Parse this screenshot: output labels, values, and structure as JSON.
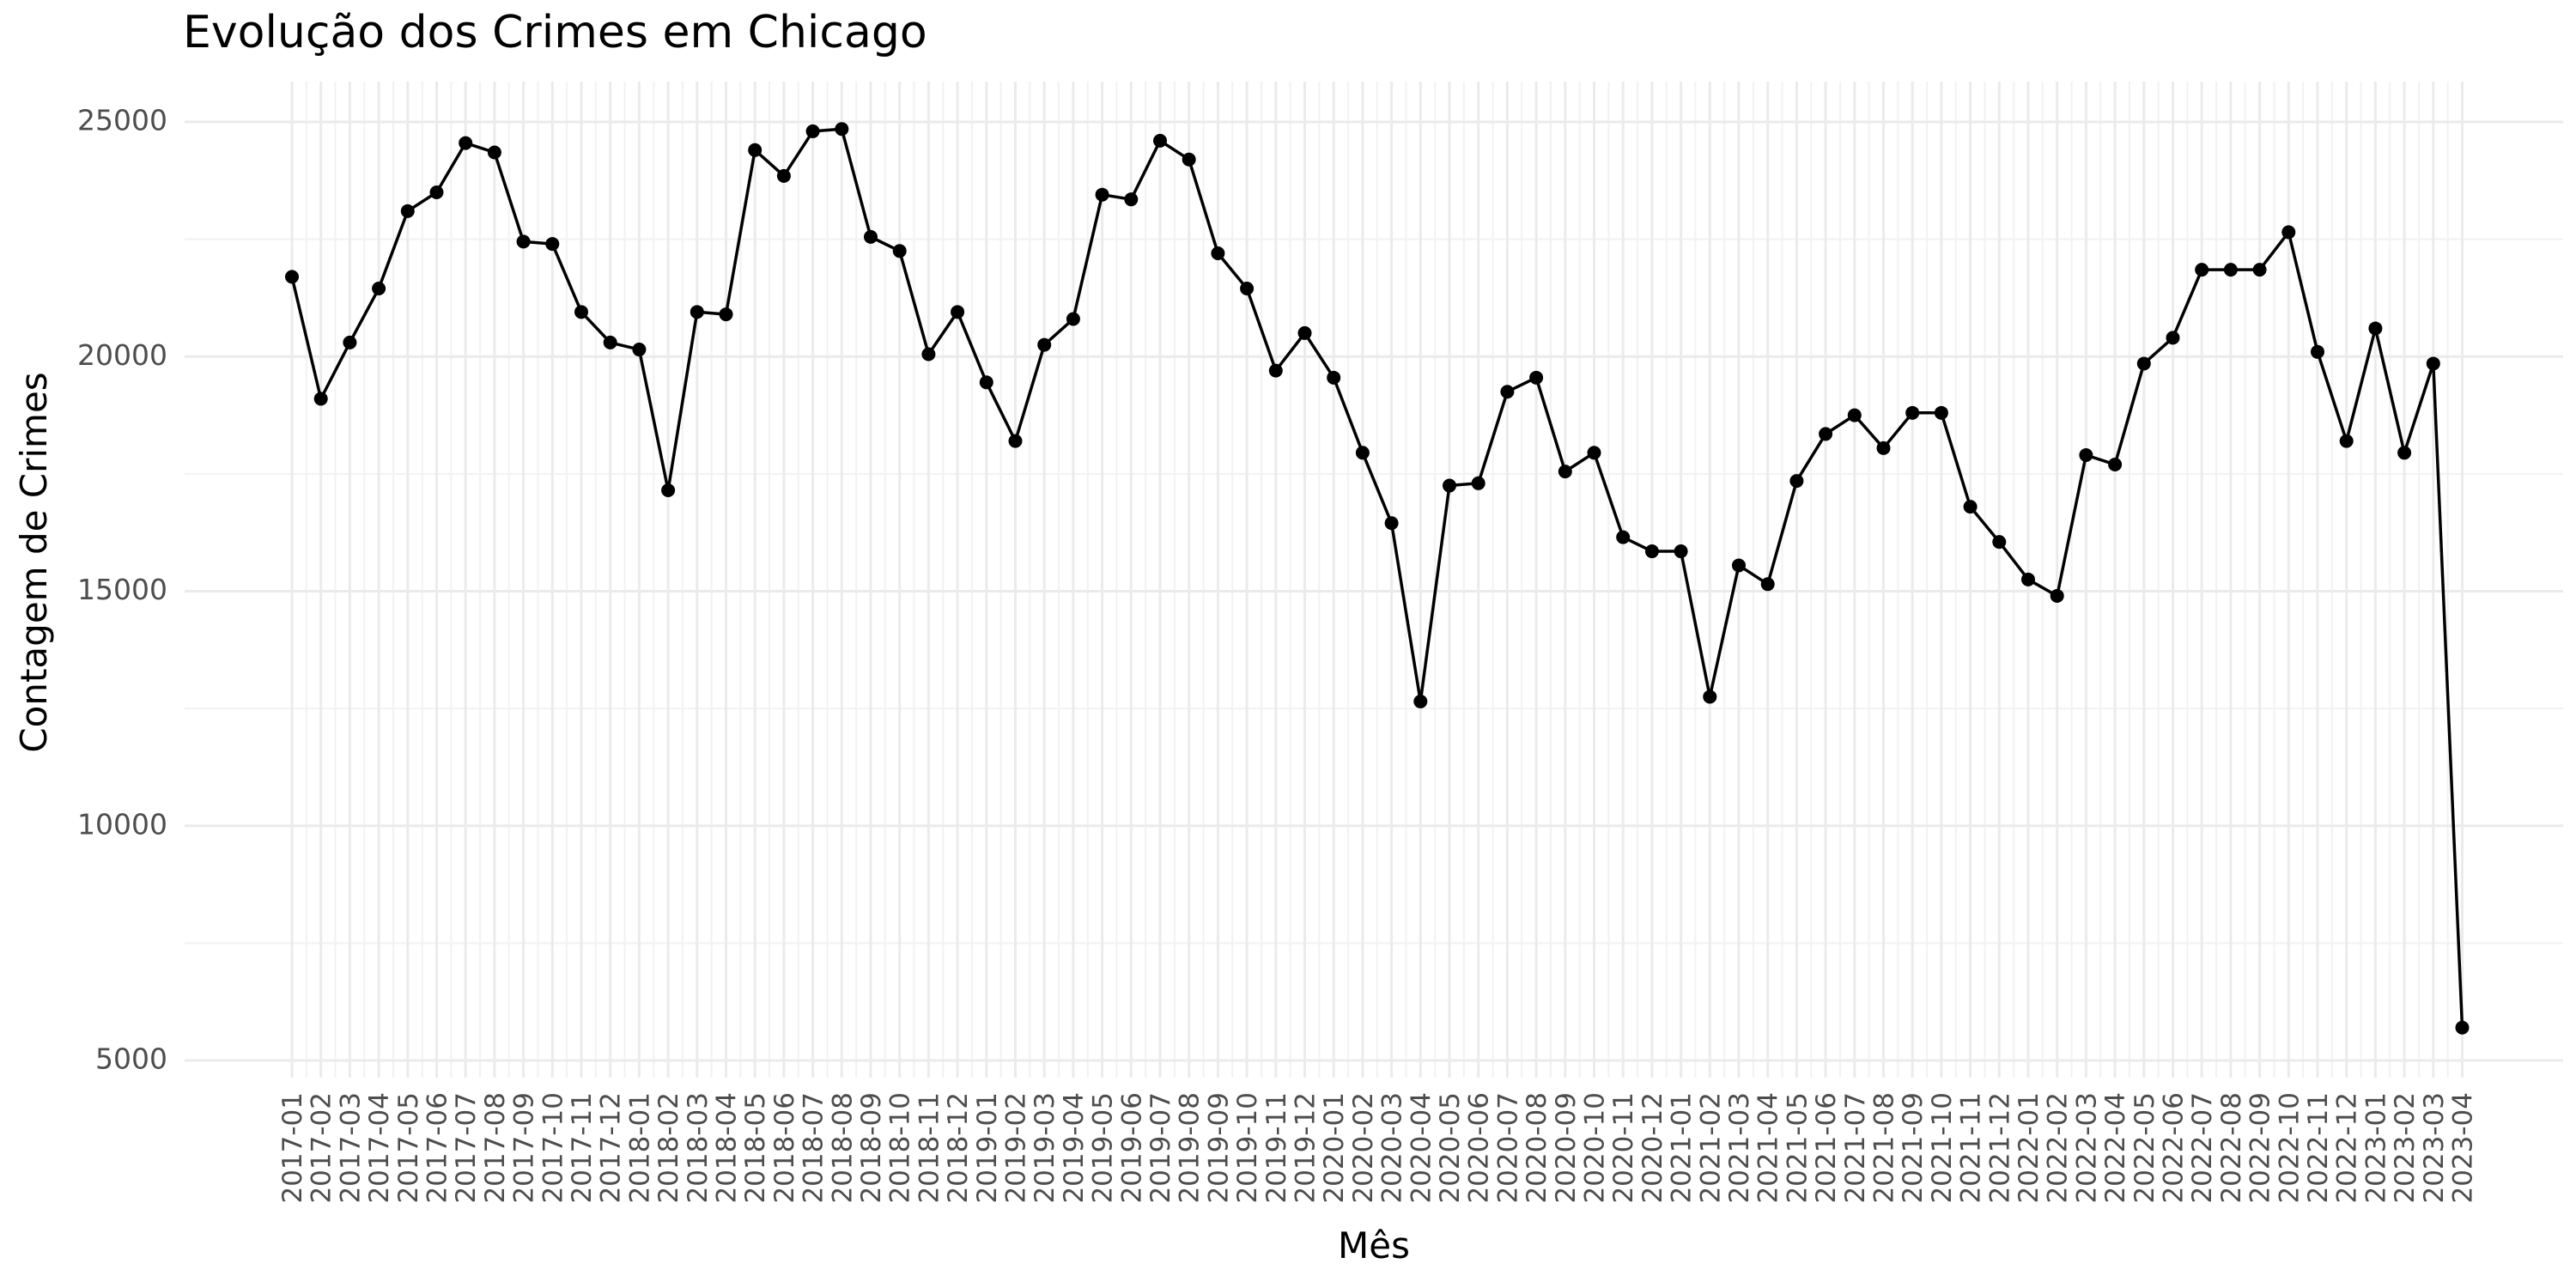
{
  "chart_data": {
    "type": "line",
    "title": "Evolução dos Crimes em Chicago",
    "xlabel": "Mês",
    "ylabel": "Contagem de Crimes",
    "ylim": [
      5000,
      25000
    ],
    "yticks": [
      5000,
      10000,
      15000,
      20000,
      25000
    ],
    "ytick_labels": [
      "5000",
      "10000",
      "15000",
      "20000",
      "25000"
    ],
    "grid": true,
    "legend": "none",
    "line_color": "#000000",
    "categories": [
      "2017-01",
      "2017-02",
      "2017-03",
      "2017-04",
      "2017-05",
      "2017-06",
      "2017-07",
      "2017-08",
      "2017-09",
      "2017-10",
      "2017-11",
      "2017-12",
      "2018-01",
      "2018-02",
      "2018-03",
      "2018-04",
      "2018-05",
      "2018-06",
      "2018-07",
      "2018-08",
      "2018-09",
      "2018-10",
      "2018-11",
      "2018-12",
      "2019-01",
      "2019-02",
      "2019-03",
      "2019-04",
      "2019-05",
      "2019-06",
      "2019-07",
      "2019-08",
      "2019-09",
      "2019-10",
      "2019-11",
      "2019-12",
      "2020-01",
      "2020-02",
      "2020-03",
      "2020-04",
      "2020-05",
      "2020-06",
      "2020-07",
      "2020-08",
      "2020-09",
      "2020-10",
      "2020-11",
      "2020-12",
      "2021-01",
      "2021-02",
      "2021-03",
      "2021-04",
      "2021-05",
      "2021-06",
      "2021-07",
      "2021-08",
      "2021-09",
      "2021-10",
      "2021-11",
      "2021-12",
      "2022-01",
      "2022-02",
      "2022-03",
      "2022-04",
      "2022-05",
      "2022-06",
      "2022-07",
      "2022-08",
      "2022-09",
      "2022-10",
      "2022-11",
      "2022-12",
      "2023-01",
      "2023-02",
      "2023-03",
      "2023-04"
    ],
    "values": [
      21700,
      19100,
      20300,
      21450,
      23100,
      23500,
      24550,
      24350,
      22450,
      22400,
      20950,
      20300,
      20150,
      17150,
      20950,
      20900,
      24400,
      23850,
      24800,
      24850,
      22550,
      22250,
      20050,
      20950,
      19450,
      18200,
      20250,
      20800,
      23450,
      23350,
      24600,
      24200,
      22200,
      21450,
      19700,
      20500,
      19550,
      17950,
      16450,
      12650,
      17250,
      17300,
      19250,
      19550,
      17550,
      17950,
      16150,
      15850,
      15850,
      12750,
      15550,
      15150,
      17350,
      18350,
      18750,
      18050,
      18800,
      18800,
      16800,
      16050,
      15250,
      14900,
      17900,
      17700,
      19850,
      20400,
      21850,
      21850,
      21850,
      22650,
      20100,
      18200,
      20600,
      17950,
      19850,
      5700
    ]
  }
}
